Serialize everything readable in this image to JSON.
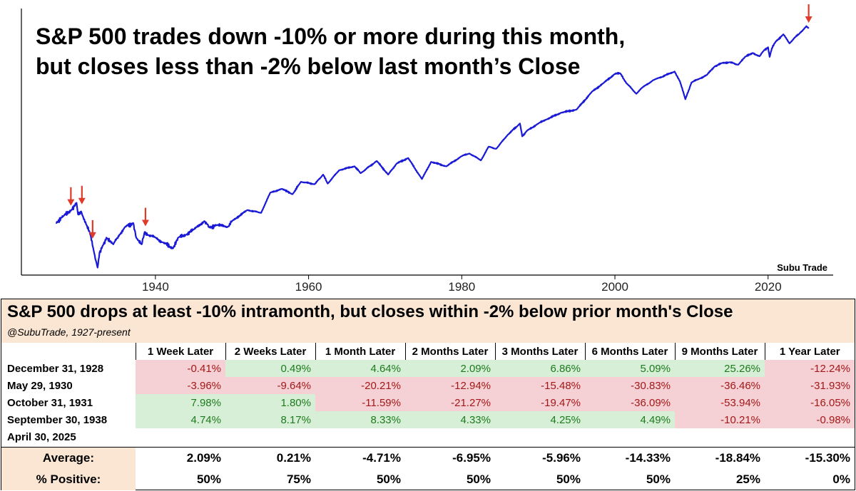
{
  "chart_data": {
    "type": "line",
    "title": "S&P 500 trades down -10% or more during this month,\nbut closes less than -2% below last month’s Close",
    "title_lines": [
      "S&P 500 trades down -10% or more during this month,",
      "but closes less than -2% below last month’s Close"
    ],
    "xlabel": "",
    "ylabel": "",
    "log_scale_y": true,
    "grid": false,
    "xlim": [
      1922.5,
      2028.5
    ],
    "ylim": [
      3.6,
      8200
    ],
    "x_ticks": [
      1940,
      1960,
      1980,
      2000,
      2020
    ],
    "line_color": "#1a1ad6",
    "marker_color": "#e03a2a",
    "watermark": "Subu Trade",
    "series": [
      {
        "x": [
          1927.0,
          1928.0,
          1929.0,
          1929.7,
          1929.9,
          1930.3,
          1931.0,
          1931.5,
          1932.0,
          1932.45,
          1932.7,
          1933.0,
          1933.6,
          1934.5,
          1935.3,
          1936.0,
          1937.1,
          1937.5,
          1938.2,
          1938.6,
          1939.0,
          1940.0,
          1941.0,
          1942.3,
          1943.0,
          1944.0,
          1945.0,
          1946.4,
          1947.0,
          1948.0,
          1949.4,
          1950.0,
          1952.0,
          1953.8,
          1955.0,
          1956.5,
          1957.9,
          1959.0,
          1960.8,
          1961.9,
          1962.5,
          1964.0,
          1966.0,
          1966.8,
          1968.9,
          1970.4,
          1971.5,
          1973.0,
          1974.8,
          1976.0,
          1978.0,
          1980.0,
          1981.0,
          1982.5,
          1983.5,
          1984.5,
          1986.0,
          1987.6,
          1987.9,
          1988.5,
          1990.0,
          1991.0,
          1993.0,
          1995.0,
          1997.0,
          1998.5,
          2000.0,
          2000.7,
          2001.5,
          2002.8,
          2003.5,
          2005.0,
          2007.8,
          2008.5,
          2009.2,
          2010.0,
          2011.0,
          2012.0,
          2013.0,
          2014.0,
          2015.0,
          2016.1,
          2017.0,
          2018.0,
          2018.9,
          2019.5,
          2020.0,
          2020.2,
          2020.5,
          2021.0,
          2022.0,
          2022.8,
          2023.5,
          2024.0,
          2024.8,
          2025.0,
          2025.3
        ],
        "y": [
          17,
          21,
          25,
          31,
          22,
          24,
          16,
          12,
          7,
          4.5,
          7,
          8,
          11,
          9,
          12,
          15,
          17,
          11,
          9,
          13,
          12,
          11,
          9.5,
          8,
          11,
          12,
          14,
          18,
          15,
          16,
          15,
          18,
          25,
          23,
          42,
          47,
          40,
          58,
          54,
          72,
          55,
          82,
          92,
          75,
          108,
          72,
          100,
          118,
          63,
          105,
          92,
          125,
          135,
          110,
          165,
          155,
          235,
          330,
          225,
          265,
          330,
          370,
          455,
          500,
          850,
          1100,
          1450,
          1470,
          1100,
          800,
          950,
          1200,
          1550,
          1150,
          680,
          1120,
          1250,
          1400,
          1800,
          2000,
          2050,
          1900,
          2400,
          2700,
          2450,
          2950,
          3200,
          2400,
          3100,
          3800,
          4700,
          3600,
          4300,
          4700,
          5700,
          6000,
          5600
        ]
      }
    ],
    "highlights": [
      {
        "x": 1928.96,
        "y": 24
      },
      {
        "x": 1930.4,
        "y": 25
      },
      {
        "x": 1931.8,
        "y": 9
      },
      {
        "x": 1938.7,
        "y": 13
      },
      {
        "x": 2025.3,
        "y": 5600
      }
    ]
  },
  "table": {
    "title": "S&P 500 drops at least -10% intramonth, but closes within -2% below prior month's Close",
    "subtitle": "@SubuTrade, 1927-present",
    "columns": [
      "1 Week Later",
      "2 Weeks Later",
      "1 Month Later",
      "2 Months Later",
      "3 Months Later",
      "6 Months Later",
      "9 Months Later",
      "1 Year Later"
    ],
    "rows": [
      {
        "label": "December 31, 1928",
        "cells": [
          {
            "v": "-0.41%",
            "s": "neg"
          },
          {
            "v": "0.49%",
            "s": "pos"
          },
          {
            "v": "4.64%",
            "s": "pos"
          },
          {
            "v": "2.09%",
            "s": "pos"
          },
          {
            "v": "6.86%",
            "s": "pos"
          },
          {
            "v": "5.09%",
            "s": "pos"
          },
          {
            "v": "25.26%",
            "s": "pos"
          },
          {
            "v": "-12.24%",
            "s": "neg"
          }
        ]
      },
      {
        "label": "May 29, 1930",
        "cells": [
          {
            "v": "-3.96%",
            "s": "neg"
          },
          {
            "v": "-9.64%",
            "s": "neg"
          },
          {
            "v": "-20.21%",
            "s": "neg"
          },
          {
            "v": "-12.94%",
            "s": "neg"
          },
          {
            "v": "-15.48%",
            "s": "neg"
          },
          {
            "v": "-30.83%",
            "s": "neg"
          },
          {
            "v": "-36.46%",
            "s": "neg"
          },
          {
            "v": "-31.93%",
            "s": "neg"
          }
        ]
      },
      {
        "label": "October 31, 1931",
        "cells": [
          {
            "v": "7.98%",
            "s": "pos"
          },
          {
            "v": "1.80%",
            "s": "pos"
          },
          {
            "v": "-11.59%",
            "s": "neg"
          },
          {
            "v": "-21.27%",
            "s": "neg"
          },
          {
            "v": "-19.47%",
            "s": "neg"
          },
          {
            "v": "-36.09%",
            "s": "neg"
          },
          {
            "v": "-53.94%",
            "s": "neg"
          },
          {
            "v": "-16.05%",
            "s": "neg"
          }
        ]
      },
      {
        "label": "September 30, 1938",
        "cells": [
          {
            "v": "4.74%",
            "s": "pos"
          },
          {
            "v": "8.17%",
            "s": "pos"
          },
          {
            "v": "8.33%",
            "s": "pos"
          },
          {
            "v": "4.33%",
            "s": "pos"
          },
          {
            "v": "4.25%",
            "s": "pos"
          },
          {
            "v": "4.49%",
            "s": "pos"
          },
          {
            "v": "-10.21%",
            "s": "neg"
          },
          {
            "v": "-0.98%",
            "s": "neg"
          }
        ]
      },
      {
        "label": "April 30, 2025",
        "cells": [
          {
            "v": "",
            "s": "emp"
          },
          {
            "v": "",
            "s": "emp"
          },
          {
            "v": "",
            "s": "emp"
          },
          {
            "v": "",
            "s": "emp"
          },
          {
            "v": "",
            "s": "emp"
          },
          {
            "v": "",
            "s": "emp"
          },
          {
            "v": "",
            "s": "emp"
          },
          {
            "v": "",
            "s": "emp"
          }
        ]
      }
    ],
    "summary": [
      {
        "label": "Average:",
        "values": [
          "2.09%",
          "0.21%",
          "-4.71%",
          "-6.95%",
          "-5.96%",
          "-14.33%",
          "-18.84%",
          "-15.30%"
        ]
      },
      {
        "label": "% Positive:",
        "values": [
          "50%",
          "75%",
          "50%",
          "50%",
          "50%",
          "50%",
          "25%",
          "0%"
        ]
      }
    ]
  }
}
